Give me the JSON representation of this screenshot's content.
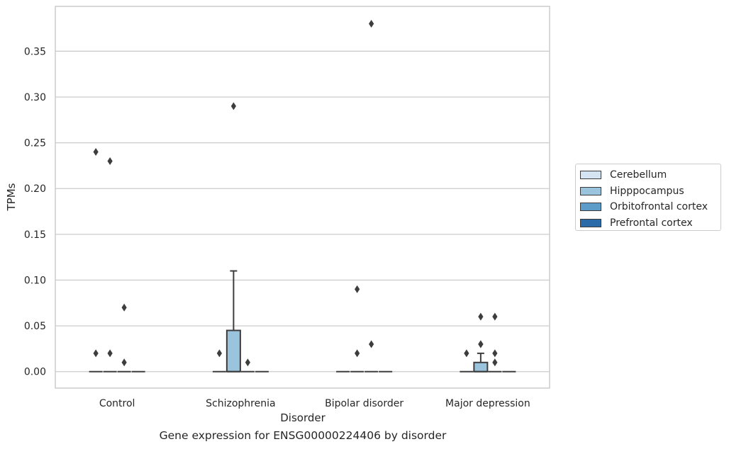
{
  "chart_data": {
    "type": "box",
    "title": "",
    "caption": "Gene expression for ENSG00000224406 by disorder",
    "xlabel": "Disorder",
    "ylabel": "TPMs",
    "categories": [
      "Control",
      "Schizophrenia",
      "Bipolar disorder",
      "Major depression"
    ],
    "yticks": [
      "0.00",
      "0.05",
      "0.10",
      "0.15",
      "0.20",
      "0.25",
      "0.30",
      "0.35"
    ],
    "ylim": [
      -0.018,
      0.399
    ],
    "grid": "horizontal",
    "legend_position": "right",
    "series": [
      {
        "name": "Cerebellum",
        "color": "#d4e4f2",
        "boxes": [
          {
            "q1": 0,
            "median": 0,
            "q3": 0,
            "whisker_low": 0,
            "whisker_high": 0,
            "outliers": [
              0.02,
              0.24
            ]
          },
          {
            "q1": 0,
            "median": 0,
            "q3": 0,
            "whisker_low": 0,
            "whisker_high": 0,
            "outliers": [
              0.02
            ]
          },
          {
            "q1": 0,
            "median": 0,
            "q3": 0,
            "whisker_low": 0,
            "whisker_high": 0,
            "outliers": []
          },
          {
            "q1": 0,
            "median": 0,
            "q3": 0,
            "whisker_low": 0,
            "whisker_high": 0,
            "outliers": [
              0.02
            ]
          }
        ]
      },
      {
        "name": "Hipppocampus",
        "color": "#9ac4de",
        "boxes": [
          {
            "q1": 0,
            "median": 0,
            "q3": 0,
            "whisker_low": 0,
            "whisker_high": 0,
            "outliers": [
              0.02,
              0.23
            ]
          },
          {
            "q1": 0,
            "median": 0,
            "q3": 0.045,
            "whisker_low": 0,
            "whisker_high": 0.11,
            "outliers": [
              0.29
            ]
          },
          {
            "q1": 0,
            "median": 0,
            "q3": 0,
            "whisker_low": 0,
            "whisker_high": 0,
            "outliers": [
              0.02,
              0.09
            ]
          },
          {
            "q1": 0,
            "median": 0,
            "q3": 0.01,
            "whisker_low": 0,
            "whisker_high": 0.02,
            "outliers": [
              0.03,
              0.03,
              0.06
            ]
          }
        ]
      },
      {
        "name": "Orbitofrontal cortex",
        "color": "#5b9cc9",
        "boxes": [
          {
            "q1": 0,
            "median": 0,
            "q3": 0,
            "whisker_low": 0,
            "whisker_high": 0,
            "outliers": [
              0.01,
              0.07
            ]
          },
          {
            "q1": 0,
            "median": 0,
            "q3": 0,
            "whisker_low": 0,
            "whisker_high": 0,
            "outliers": [
              0.01
            ]
          },
          {
            "q1": 0,
            "median": 0,
            "q3": 0,
            "whisker_low": 0,
            "whisker_high": 0,
            "outliers": [
              0.03,
              0.38
            ]
          },
          {
            "q1": 0,
            "median": 0,
            "q3": 0,
            "whisker_low": 0,
            "whisker_high": 0,
            "outliers": [
              0.01,
              0.02,
              0.06
            ]
          }
        ]
      },
      {
        "name": "Prefrontal cortex",
        "color": "#2b6aa8",
        "boxes": [
          {
            "q1": 0,
            "median": 0,
            "q3": 0,
            "whisker_low": 0,
            "whisker_high": 0,
            "outliers": []
          },
          {
            "q1": 0,
            "median": 0,
            "q3": 0,
            "whisker_low": 0,
            "whisker_high": 0,
            "outliers": []
          },
          {
            "q1": 0,
            "median": 0,
            "q3": 0,
            "whisker_low": 0,
            "whisker_high": 0,
            "outliers": []
          },
          {
            "q1": 0,
            "median": 0,
            "q3": 0,
            "whisker_low": 0,
            "whisker_high": 0,
            "outliers": []
          }
        ]
      }
    ]
  }
}
